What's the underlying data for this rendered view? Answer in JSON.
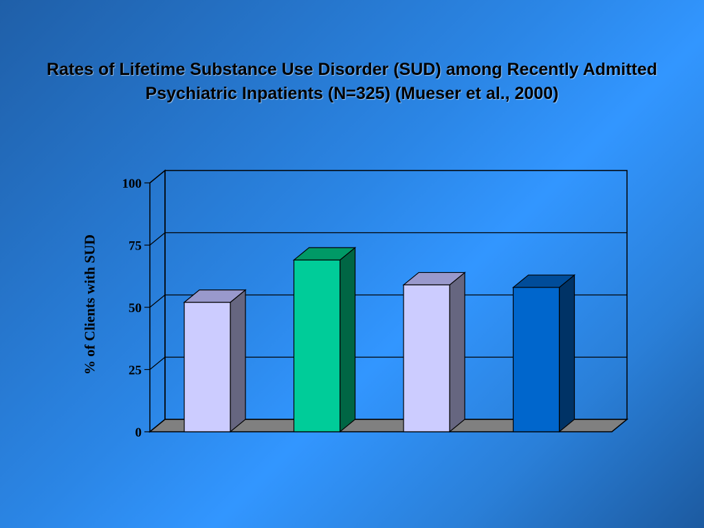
{
  "title": "Rates of Lifetime Substance Use Disorder (SUD) among Recently Admitted Psychiatric Inpatients (N=325) (Mueser et al., 2000)",
  "chart_data": {
    "type": "bar",
    "title": "Rates of Lifetime Substance Use Disorder (SUD) among Recently Admitted Psychiatric Inpatients (N=325) (Mueser et al., 2000)",
    "xlabel": "",
    "ylabel": "% of Clients with SUD",
    "ylim": [
      0,
      100
    ],
    "yticks": [
      0,
      25,
      50,
      75,
      100
    ],
    "grid": true,
    "style": "3d-column",
    "categories": [
      "",
      "",
      "",
      ""
    ],
    "values": [
      52,
      69,
      59,
      58
    ],
    "bar_colors": [
      {
        "front": "#ccccff",
        "side": "#666680",
        "top": "#9999cc"
      },
      {
        "front": "#00cc99",
        "side": "#006644",
        "top": "#009966"
      },
      {
        "front": "#ccccff",
        "side": "#666680",
        "top": "#9999cc"
      },
      {
        "front": "#0066cc",
        "side": "#003366",
        "top": "#004c99"
      }
    ]
  }
}
